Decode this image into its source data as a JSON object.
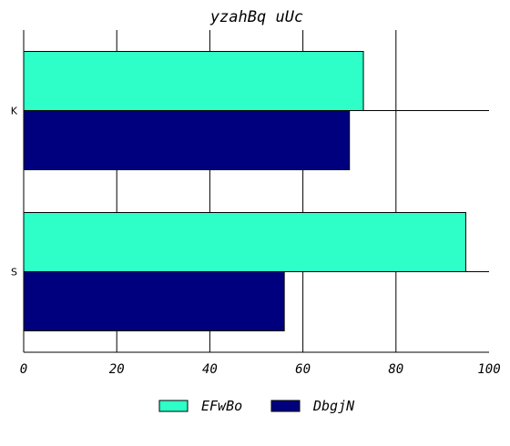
{
  "chart_data": {
    "type": "bar",
    "orientation": "horizontal",
    "title": "yzahBq uUc",
    "categories": [
      "S",
      "K"
    ],
    "series": [
      {
        "name": "EFwBo",
        "values": [
          95,
          73
        ],
        "color": "#2effc8"
      },
      {
        "name": "DbgjN",
        "values": [
          56,
          70
        ],
        "color": "#00007f"
      }
    ],
    "xlim": [
      0,
      100
    ],
    "xticks": [
      "0",
      "20",
      "40",
      "60",
      "80",
      "100"
    ],
    "xlabel": "",
    "ylabel": "",
    "grid": "x",
    "legend": "bottom-center"
  }
}
